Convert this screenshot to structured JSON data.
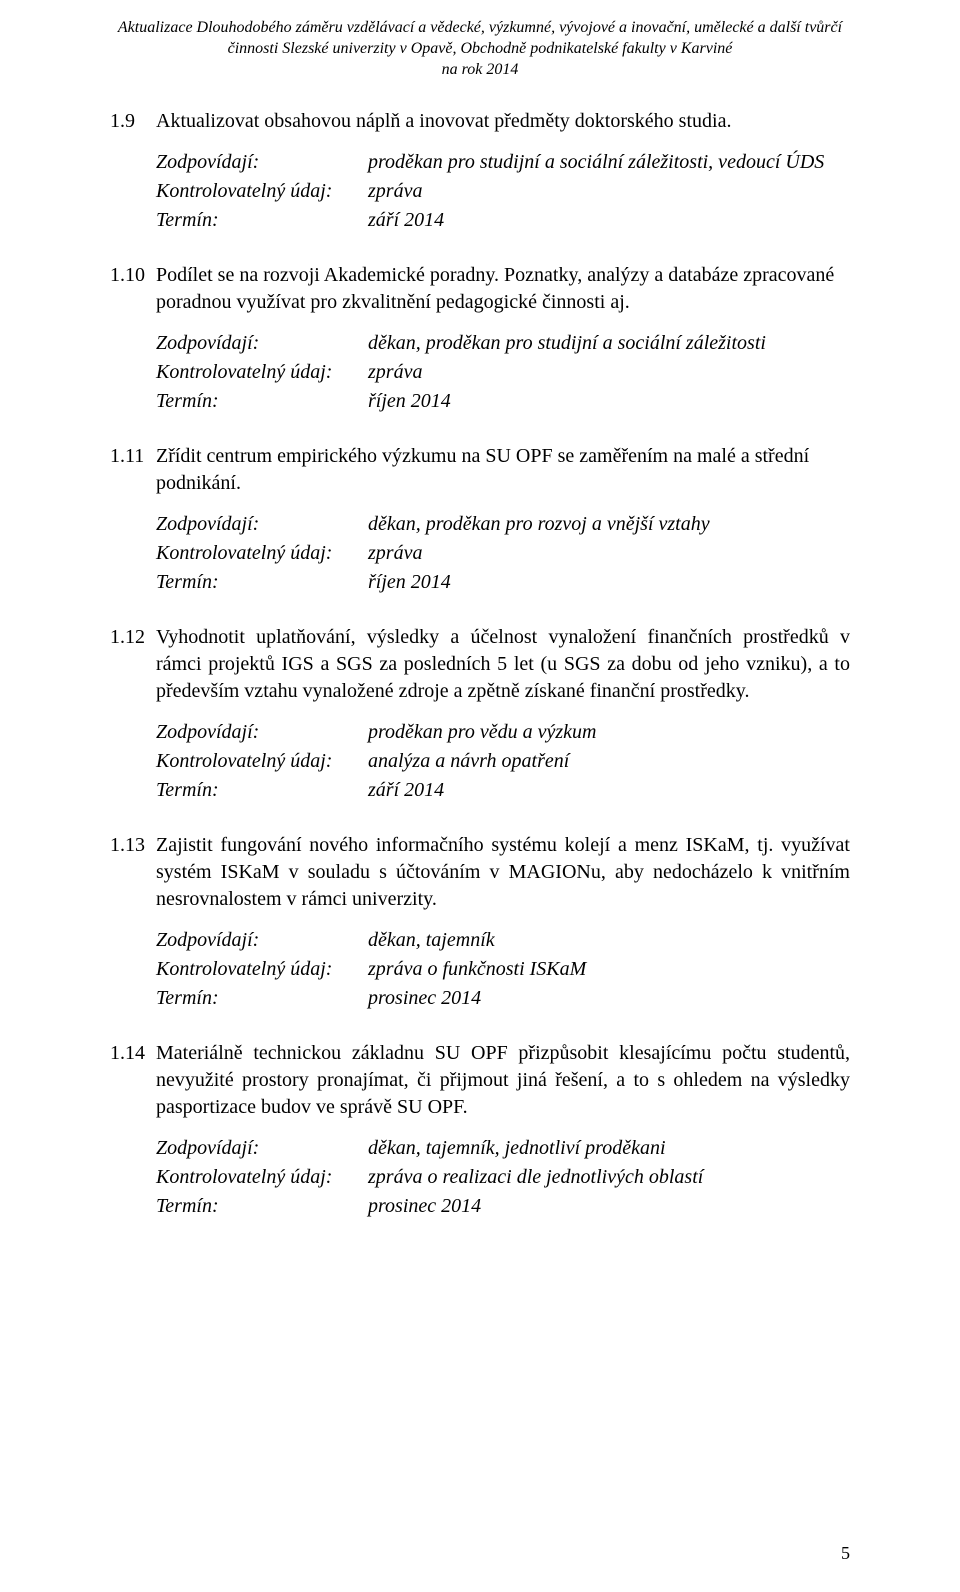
{
  "header": {
    "line1": "Aktualizace Dlouhodobého záměru vzdělávací a vědecké, výzkumné, vývojové a inovační, umělecké a další tvůrčí",
    "line2": "činnosti Slezské univerzity v Opavě, Obchodně podnikatelské fakulty v Karviné",
    "line3": "na rok 2014"
  },
  "labels": {
    "zodp": "Zodpovídají:",
    "kontrol": "Kontrolovatelný údaj:",
    "termin": "Termín:"
  },
  "sections": [
    {
      "num": "1.9",
      "text": "Aktualizovat obsahovou náplň a inovovat předměty doktorského studia.",
      "justify": false,
      "zodp": "proděkan pro studijní a sociální záležitosti, vedoucí ÚDS",
      "kontrol": "zpráva",
      "termin": "září 2014"
    },
    {
      "num": "1.10",
      "text": "Podílet se na rozvoji Akademické poradny. Poznatky, analýzy a databáze zpracované poradnou využívat pro zkvalitnění pedagogické činnosti aj.",
      "justify": false,
      "zodp": "děkan, proděkan pro studijní a sociální záležitosti",
      "kontrol": "zpráva",
      "termin": "říjen 2014"
    },
    {
      "num": "1.11",
      "text": "Zřídit centrum empirického výzkumu na SU OPF se zaměřením na malé a střední podnikání.",
      "justify": false,
      "zodp": "děkan, proděkan pro rozvoj a vnější vztahy",
      "kontrol": "zpráva",
      "termin": "říjen 2014"
    },
    {
      "num": "1.12",
      "text": "Vyhodnotit uplatňování, výsledky a účelnost vynaložení finančních prostředků v rámci projektů IGS a SGS za posledních 5 let (u SGS za dobu od jeho vzniku), a to především vztahu vynaložené zdroje a zpětně získané finanční prostředky.",
      "justify": true,
      "zodp": "proděkan pro vědu a výzkum",
      "kontrol": "analýza a návrh opatření",
      "termin": "září 2014"
    },
    {
      "num": "1.13",
      "text": "Zajistit fungování nového informačního systému kolejí a menz ISKaM, tj. využívat systém ISKaM v souladu s účtováním v MAGIONu, aby nedocházelo k  vnitřním nesrovnalostem v rámci univerzity.",
      "justify": true,
      "zodp": "děkan, tajemník",
      "kontrol": "zpráva o funkčnosti ISKaM",
      "termin": "prosinec 2014"
    },
    {
      "num": "1.14",
      "text": "Materiálně technickou základnu SU OPF přizpůsobit klesajícímu počtu studentů, nevyužité prostory pronajímat, či přijmout jiná řešení, a to s ohledem na výsledky pasportizace budov ve správě SU OPF.",
      "justify": true,
      "zodp": "děkan, tajemník, jednotliví proděkani",
      "kontrol": "zpráva o realizaci dle jednotlivých oblastí",
      "termin": "prosinec 2014"
    }
  ],
  "pageNumber": "5"
}
